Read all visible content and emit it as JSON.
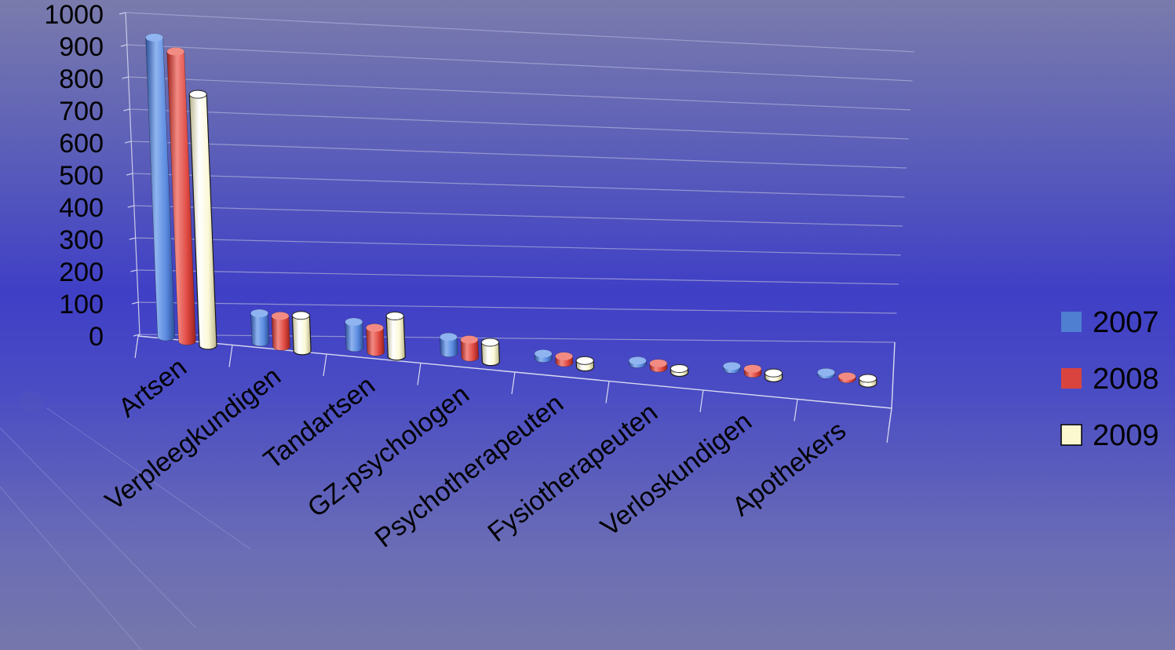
{
  "chart_data": {
    "type": "bar",
    "title": "",
    "xlabel": "",
    "ylabel": "",
    "ylim": [
      0,
      1000
    ],
    "yticks": [
      0,
      100,
      200,
      300,
      400,
      500,
      600,
      700,
      800,
      900,
      1000
    ],
    "categories": [
      "Artsen",
      "Verpleegkundigen",
      "Tandartsen",
      "GZ-psychologen",
      "Psychotherapeuten",
      "Fysiotherapeuten",
      "Verloskundigen",
      "Apothekers"
    ],
    "series": [
      {
        "name": "2007",
        "color": "#4f7fd0",
        "values": [
          930,
          90,
          80,
          50,
          15,
          10,
          10,
          5
        ]
      },
      {
        "name": "2008",
        "color": "#d9443e",
        "values": [
          900,
          95,
          75,
          55,
          20,
          15,
          15,
          8
        ]
      },
      {
        "name": "2009",
        "color": "#fbf8d0",
        "values": [
          780,
          110,
          125,
          60,
          20,
          12,
          15,
          15
        ]
      }
    ],
    "grid": true,
    "legend_position": "right",
    "style": "3d-cylinder"
  }
}
